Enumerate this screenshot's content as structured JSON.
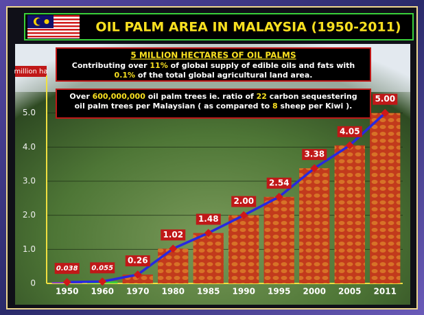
{
  "chart_data": {
    "type": "bar",
    "title": "OIL PALM AREA IN MALAYSIA (1950-2011)",
    "ylabel": "million ha",
    "annotations": [
      {
        "heading": "5 MILLION HECTARES OF OIL PALMS",
        "lines": [
          [
            "Contributing over ",
            "11%",
            " of global supply of edible oils and fats with"
          ],
          [
            "",
            "0.1%",
            " of the total global agricultural land area."
          ]
        ]
      },
      {
        "lines": [
          [
            "Over ",
            "600,000,000",
            " oil palm trees ie. ratio of ",
            "22",
            " carbon sequestering"
          ],
          [
            "oil palm trees per Malaysian ( as compared to ",
            "8",
            " sheep per Kiwi )."
          ]
        ]
      }
    ],
    "categories": [
      "1950",
      "1960",
      "1970",
      "1980",
      "1985",
      "1990",
      "1995",
      "2000",
      "2005",
      "2011"
    ],
    "values": [
      0.038,
      0.055,
      0.26,
      1.02,
      1.48,
      2.0,
      2.54,
      3.38,
      4.05,
      5.0
    ],
    "value_labels": [
      "0.038",
      "0.055",
      "0.26",
      "1.02",
      "1.48",
      "2.00",
      "2.54",
      "3.38",
      "4.05",
      "5.00"
    ],
    "colors": [
      "#8a3cc8",
      "#3ad23a",
      "#c23a1c",
      "#c23a1c",
      "#c23a1c",
      "#c23a1c",
      "#c23a1c",
      "#c23a1c",
      "#c23a1c",
      "#c23a1c"
    ],
    "line_color": "#2828e0",
    "marker_color": "#d01818",
    "ylim": [
      0,
      6
    ],
    "yticks": [
      0,
      {
        "value": 1,
        "label": "1.0"
      },
      {
        "value": 2,
        "label": "2.0"
      },
      {
        "value": 3,
        "label": "3.0"
      },
      {
        "value": 4,
        "label": "4.0"
      },
      {
        "value": 5,
        "label": "5.0"
      }
    ],
    "grid": true
  }
}
